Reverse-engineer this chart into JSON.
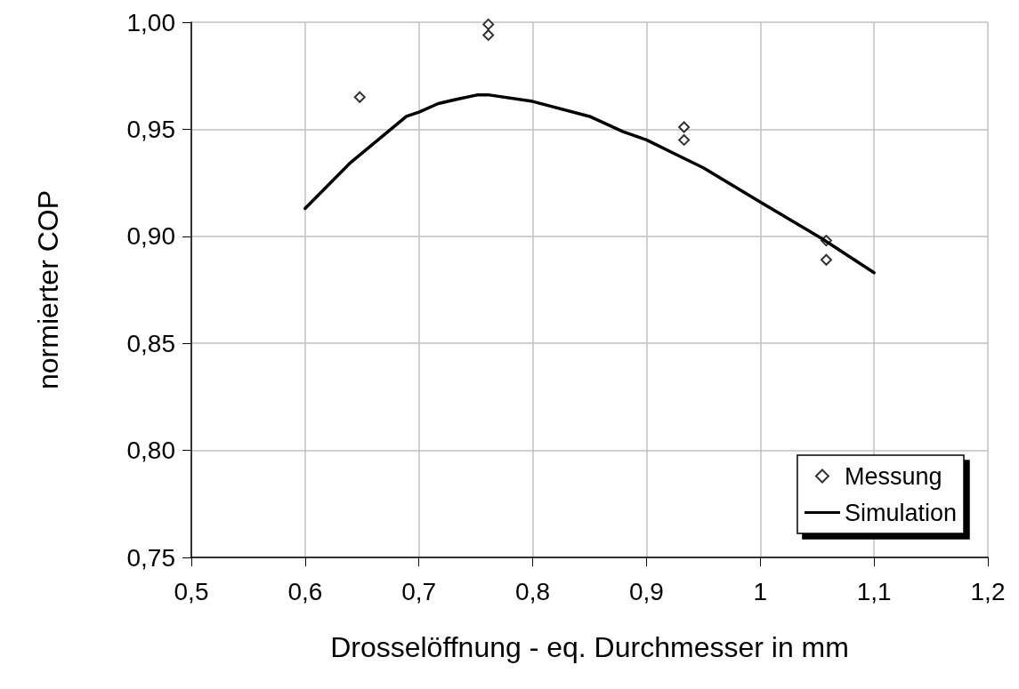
{
  "chart_data": {
    "type": "scatter",
    "xlabel": "Drosselöffnung - eq. Durchmesser in mm",
    "ylabel": "normierter COP",
    "xlim": [
      0.5,
      1.2
    ],
    "xticks": [
      {
        "value": 0.5,
        "label": "0,5"
      },
      {
        "value": 0.6,
        "label": "0,6"
      },
      {
        "value": 0.7,
        "label": "0,7"
      },
      {
        "value": 0.8,
        "label": "0,8"
      },
      {
        "value": 0.9,
        "label": "0,9"
      },
      {
        "value": 1,
        "label": "1"
      },
      {
        "value": 1.1,
        "label": "1,1"
      },
      {
        "value": 1.2,
        "label": "1,2"
      }
    ],
    "ylim": [
      0.75,
      1.0
    ],
    "yticks": [
      {
        "value": 0.75,
        "label": "0,75"
      },
      {
        "value": 0.8,
        "label": "0,80"
      },
      {
        "value": 0.85,
        "label": "0,85"
      },
      {
        "value": 0.9,
        "label": "0,90"
      },
      {
        "value": 0.95,
        "label": "0,95"
      },
      {
        "value": 1.0,
        "label": "1,00"
      }
    ],
    "grid": true,
    "legend": "bottom right",
    "series": [
      {
        "name": "Messung",
        "marker": "diamond",
        "color": "#000000",
        "x": [
          0.648,
          0.761,
          0.761,
          0.933,
          0.933,
          1.058,
          1.058
        ],
        "values": [
          0.965,
          0.999,
          0.994,
          0.951,
          0.945,
          0.898,
          0.889
        ]
      },
      {
        "name": "Simulation",
        "type": "line",
        "marker": "none",
        "line_style": "solid",
        "color": "#000000",
        "x": [
          0.6,
          0.639,
          0.673,
          0.689,
          0.7,
          0.717,
          0.733,
          0.751,
          0.762,
          0.8,
          0.85,
          0.879,
          0.9,
          0.95,
          1.0,
          1.054,
          1.1
        ],
        "values": [
          0.913,
          0.934,
          0.949,
          0.956,
          0.958,
          0.962,
          0.964,
          0.966,
          0.966,
          0.963,
          0.956,
          0.949,
          0.945,
          0.932,
          0.916,
          0.899,
          0.883
        ]
      }
    ]
  }
}
